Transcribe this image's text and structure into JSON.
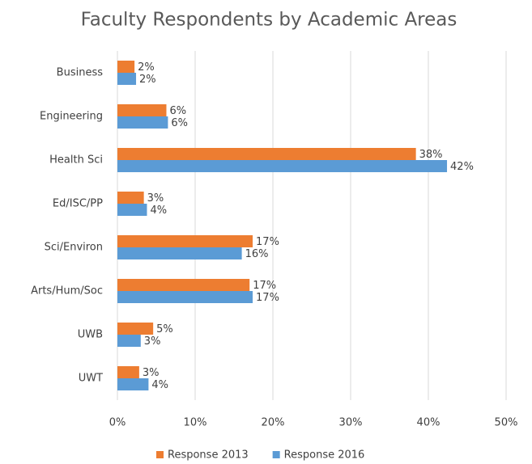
{
  "chart_data": {
    "type": "hbar",
    "title": "Faculty Respondents by Academic Areas",
    "categories": [
      "Business",
      "Engineering",
      "Health Sci",
      "Ed/ISC/PP",
      "Sci/Environ",
      "Arts/Hum/Soc",
      "UWB",
      "UWT"
    ],
    "series": [
      {
        "name": "Response 2013",
        "color": "#ed7d31",
        "values": [
          2.2,
          6.3,
          38.4,
          3.4,
          17.4,
          17,
          4.6,
          2.8
        ],
        "value_labels": [
          "2%",
          "6%",
          "38%",
          "3%",
          "17%",
          "17%",
          "5%",
          "3%"
        ]
      },
      {
        "name": "Response 2016",
        "color": "#5b9bd5",
        "values": [
          2.4,
          6.5,
          42.4,
          3.8,
          16,
          17.4,
          3,
          4
        ],
        "value_labels": [
          "2%",
          "6%",
          "42%",
          "4%",
          "16%",
          "17%",
          "3%",
          "4%"
        ]
      }
    ],
    "xlim": [
      0,
      50
    ],
    "xticks": [
      {
        "value": 0,
        "label": "0%"
      },
      {
        "value": 10,
        "label": "10%"
      },
      {
        "value": 20,
        "label": "20%"
      },
      {
        "value": 30,
        "label": "30%"
      },
      {
        "value": 40,
        "label": "40%"
      },
      {
        "value": 50,
        "label": "50%"
      }
    ],
    "grid": true,
    "legend": "bottom"
  }
}
